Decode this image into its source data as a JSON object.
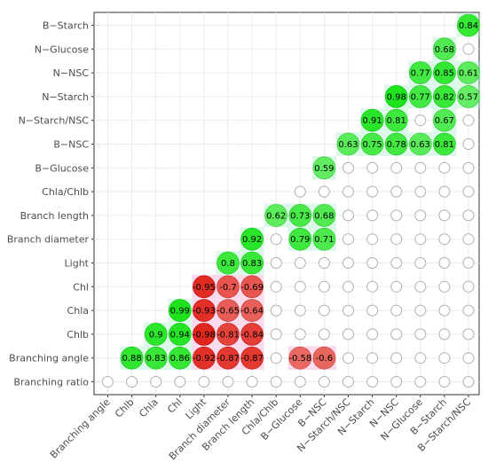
{
  "chart_data": {
    "type": "heatmap",
    "title": "",
    "xlabel": "",
    "ylabel": "",
    "variables": [
      "Branching angle",
      "Chlb",
      "Chla",
      "Chl",
      "Light",
      "Branch diameter",
      "Branch length",
      "Chla/Chlb",
      "B-Glucose",
      "B-NSC",
      "N-Starch/NSC",
      "N-Starch",
      "N-NSC",
      "N-Glucose",
      "B-Starch",
      "B-Starch/NSC"
    ],
    "x_tick_labels": [
      "Branching angle",
      "Chlb",
      "Chla",
      "Chl",
      "Light",
      "Branch diameter",
      "Branch length",
      "Chla/Chlb",
      "B−Glucose",
      "B−NSC",
      "N−Starch/NSC",
      "N−Starch",
      "N−NSC",
      "N−Glucose",
      "B−Starch",
      "B−Starch/NSC"
    ],
    "y_tick_labels_top_to_bottom": [
      "B−Starch",
      "N−Glucose",
      "N−NSC",
      "N−Starch",
      "N−Starch/NSC",
      "B−NSC",
      "B−Glucose",
      "Chla/Chlb",
      "Branch length",
      "Branch diameter",
      "Light",
      "Chl",
      "Chla",
      "Chlb",
      "Branching angle",
      "Branching ratio"
    ],
    "rows_top_to_bottom": [
      [
        null,
        null,
        null,
        null,
        null,
        null,
        null,
        null,
        null,
        null,
        null,
        null,
        null,
        null,
        null,
        0.84
      ],
      [
        null,
        null,
        null,
        null,
        null,
        null,
        null,
        null,
        null,
        null,
        null,
        null,
        null,
        null,
        0.68,
        0
      ],
      [
        null,
        null,
        null,
        null,
        null,
        null,
        null,
        null,
        null,
        null,
        null,
        null,
        null,
        0.77,
        0.85,
        0.61
      ],
      [
        null,
        null,
        null,
        null,
        null,
        null,
        null,
        null,
        null,
        null,
        null,
        null,
        0.98,
        0.77,
        0.82,
        0.57
      ],
      [
        null,
        null,
        null,
        null,
        null,
        null,
        null,
        null,
        null,
        null,
        null,
        0.91,
        0.81,
        0,
        0.67,
        0
      ],
      [
        null,
        null,
        null,
        null,
        null,
        null,
        null,
        null,
        null,
        null,
        0.63,
        0.75,
        0.78,
        0.63,
        0.81,
        0
      ],
      [
        null,
        null,
        null,
        null,
        null,
        null,
        null,
        null,
        null,
        0.59,
        0,
        0,
        0,
        0,
        0,
        0
      ],
      [
        null,
        null,
        null,
        null,
        null,
        null,
        null,
        null,
        0,
        0,
        0,
        0,
        0,
        0,
        0,
        0
      ],
      [
        null,
        null,
        null,
        null,
        null,
        null,
        null,
        0.62,
        0.73,
        0.68,
        0,
        0,
        0,
        0,
        0,
        0
      ],
      [
        null,
        null,
        null,
        null,
        null,
        null,
        0.92,
        0,
        0.79,
        0.71,
        0,
        0,
        0,
        0,
        0,
        0
      ],
      [
        null,
        null,
        null,
        null,
        null,
        0.8,
        0.83,
        0,
        0,
        0,
        0,
        0,
        0,
        0,
        0,
        0
      ],
      [
        null,
        null,
        null,
        null,
        -0.95,
        -0.7,
        -0.69,
        0,
        0,
        0,
        0,
        0,
        0,
        0,
        0,
        0
      ],
      [
        null,
        null,
        null,
        0.99,
        -0.93,
        -0.65,
        -0.64,
        0,
        0,
        0,
        0,
        0,
        0,
        0,
        0,
        0
      ],
      [
        null,
        null,
        0.9,
        0.94,
        -0.98,
        -0.81,
        -0.84,
        0,
        0,
        0,
        0,
        0,
        0,
        0,
        0,
        0
      ],
      [
        null,
        0.88,
        0.83,
        0.86,
        -0.92,
        -0.87,
        -0.87,
        0,
        -0.58,
        -0.6,
        0,
        0,
        0,
        0,
        0,
        0
      ],
      [
        0,
        0,
        0,
        0,
        0,
        0,
        0,
        0,
        0,
        0,
        0,
        0,
        0,
        0,
        0,
        0
      ]
    ],
    "empty_cell_meaning": "non-significant (open circle)",
    "color_scale": {
      "negative": "#e0241b",
      "zero": "#ffffff",
      "positive": "#1be41b"
    },
    "grid": true,
    "legend": "none"
  }
}
